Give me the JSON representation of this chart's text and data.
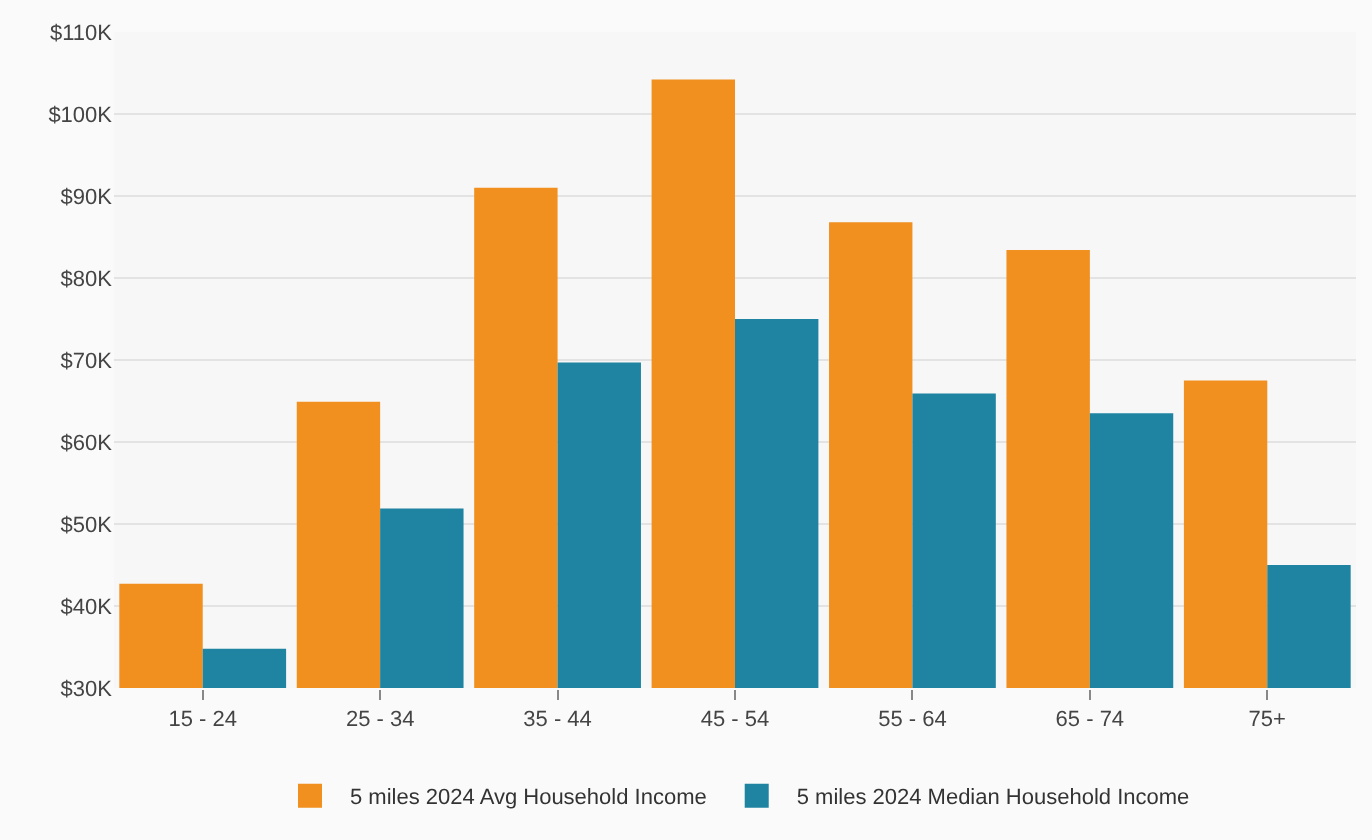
{
  "chart_data": {
    "type": "bar",
    "categories": [
      "15 - 24",
      "25 - 34",
      "35 - 44",
      "45 - 54",
      "55 - 64",
      "65 - 74",
      "75+"
    ],
    "series": [
      {
        "name": "5 miles 2024 Avg Household Income",
        "color": "#f18f1f",
        "values": [
          42700,
          64900,
          91000,
          104200,
          86800,
          83400,
          67500
        ]
      },
      {
        "name": "5 miles 2024 Median Household Income",
        "color": "#1f84a2",
        "values": [
          34800,
          51900,
          69700,
          75000,
          65900,
          63500,
          45000
        ]
      }
    ],
    "ylim": [
      30000,
      110000
    ],
    "yticks": [
      {
        "value": 30000,
        "label": "$30K"
      },
      {
        "value": 40000,
        "label": "$40K"
      },
      {
        "value": 50000,
        "label": "$50K"
      },
      {
        "value": 60000,
        "label": "$60K"
      },
      {
        "value": 70000,
        "label": "$70K"
      },
      {
        "value": 80000,
        "label": "$80K"
      },
      {
        "value": 90000,
        "label": "$90K"
      },
      {
        "value": 100000,
        "label": "$100K"
      },
      {
        "value": 110000,
        "label": "$110K"
      }
    ],
    "grid": "y",
    "legend": "bottom"
  }
}
